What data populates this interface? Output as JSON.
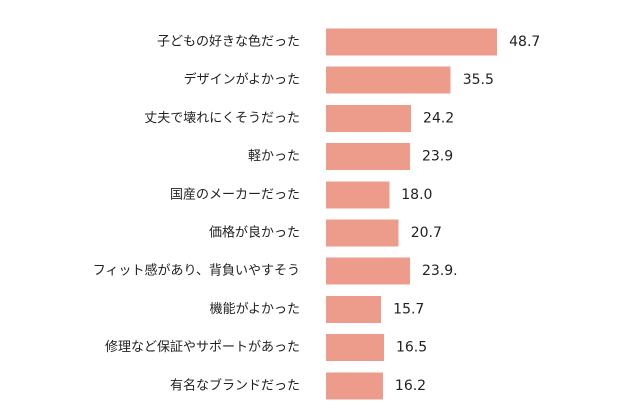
{
  "chart_data": {
    "type": "bar",
    "orientation": "horizontal",
    "categories": [
      "子どもの好きな色だった",
      "デザインがよかった",
      "丈夫で壊れにくそうだった",
      "軽かった",
      "国産のメーカーだった",
      "価格が良かった",
      "フィット感があり、背負いやすそう",
      "機能がよかった",
      "修理など保証やサポートがあった",
      "有名なブランドだった"
    ],
    "values": [
      48.7,
      35.5,
      24.2,
      23.9,
      18.0,
      20.7,
      23.9,
      15.7,
      16.5,
      16.2
    ],
    "value_labels": [
      "48.7",
      "35.5",
      "24.2",
      "23.9",
      "18.0",
      "20.7",
      "23.9.",
      "15.7",
      "16.5",
      "16.2"
    ],
    "xlim": [
      0,
      60
    ],
    "grid": false,
    "legend": "none",
    "bar_color": "#ED9C8C"
  }
}
